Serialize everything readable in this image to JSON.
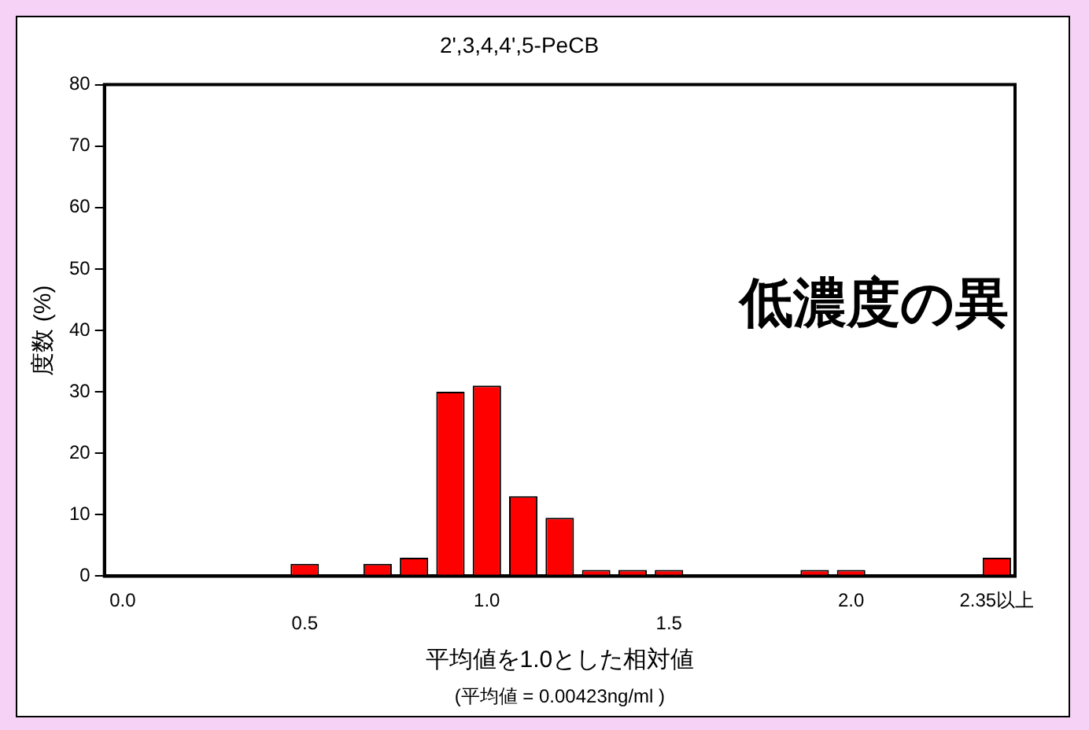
{
  "chart_data": {
    "type": "bar",
    "title": "2',3,4,4',5-PeCB",
    "xlabel": "平均値を1.0とした相対値",
    "ylabel": "度数 (%)",
    "annotations": [
      "低濃度の異",
      "(平均値 = 0.00423ng/ml )"
    ],
    "categories": [
      "0.0",
      null,
      null,
      null,
      null,
      "0.5",
      null,
      null,
      null,
      null,
      "1.0",
      null,
      null,
      null,
      null,
      "1.5",
      null,
      null,
      null,
      null,
      "2.0",
      null,
      null,
      null,
      "2.35以上"
    ],
    "values": [
      null,
      null,
      null,
      null,
      null,
      2,
      null,
      2,
      3,
      30,
      31,
      13,
      9.5,
      1,
      1,
      1,
      null,
      null,
      null,
      1,
      1,
      null,
      null,
      null,
      3
    ],
    "color": "#ff0000",
    "ylim": [
      0,
      80
    ],
    "yticks": [
      0,
      10,
      20,
      30,
      40,
      50,
      60,
      70,
      80
    ],
    "grid": false,
    "legend": false
  }
}
